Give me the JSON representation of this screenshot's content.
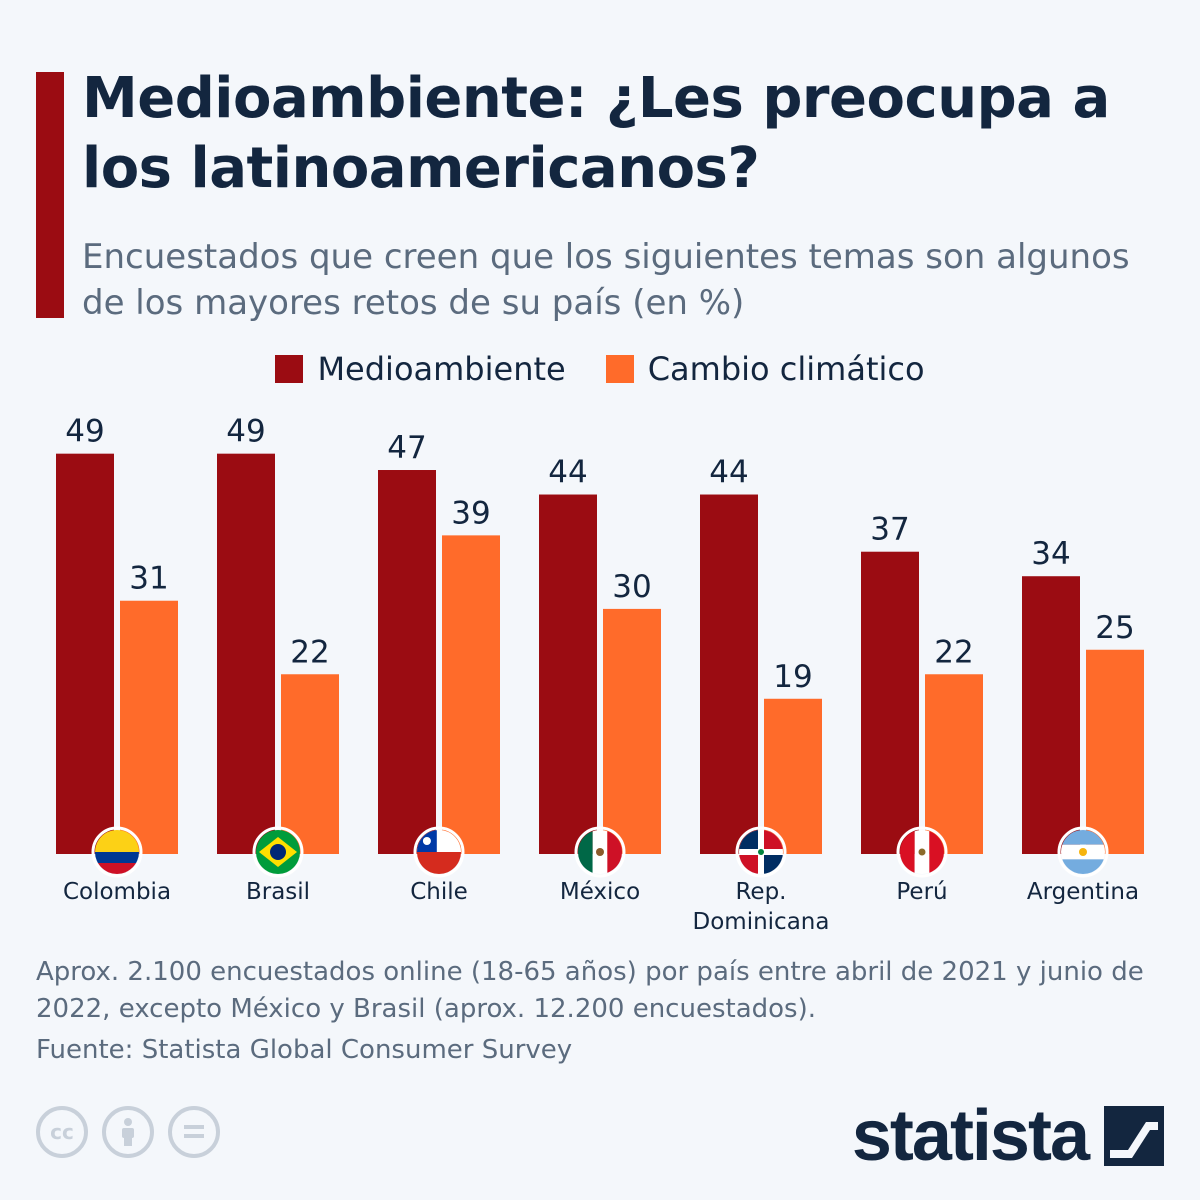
{
  "colors": {
    "accent": "#9b0c12",
    "series_1": "#9b0c12",
    "series_2": "#ff6b2a",
    "title": "#13263f",
    "muted": "#5b6b7e",
    "axis": "#aab4c0"
  },
  "title": "Medioambiente: ¿Les preocupa a los latinoamericanos?",
  "subtitle": "Encuestados que creen que los siguientes temas son algunos de los mayores retos de su país (en %)",
  "legend": [
    {
      "label": "Medioambiente"
    },
    {
      "label": "Cambio climático"
    }
  ],
  "chart_data": {
    "type": "bar",
    "categories": [
      "Colombia",
      "Brasil",
      "Chile",
      "México",
      "Rep. Dominicana",
      "Perú",
      "Argentina"
    ],
    "category_label_lines": [
      [
        "Colombia"
      ],
      [
        "Brasil"
      ],
      [
        "Chile"
      ],
      [
        "México"
      ],
      [
        "Rep.",
        "Dominicana"
      ],
      [
        "Perú"
      ],
      [
        "Argentina"
      ]
    ],
    "flag_icons": [
      "colombia-flag-icon",
      "brazil-flag-icon",
      "chile-flag-icon",
      "mexico-flag-icon",
      "dominican-republic-flag-icon",
      "peru-flag-icon",
      "argentina-flag-icon"
    ],
    "series": [
      {
        "name": "Medioambiente",
        "values": [
          49,
          49,
          47,
          44,
          44,
          37,
          34
        ]
      },
      {
        "name": "Cambio climático",
        "values": [
          31,
          22,
          39,
          30,
          19,
          22,
          25
        ]
      }
    ],
    "title": "Medioambiente: ¿Les preocupa a los latinoamericanos?",
    "xlabel": "",
    "ylabel": "",
    "ylim": [
      0,
      50
    ],
    "grid": false,
    "legend_position": "top-center",
    "data_labels": true
  },
  "footnote": "Aprox. 2.100 encuestados online (18-65 años) por país entre abril de 2021 y junio de 2022, excepto México y Brasil (aprox. 12.200 encuestados).",
  "source": "Fuente: Statista Global Consumer Survey",
  "license_icons": [
    "creative-commons-icon",
    "attribution-icon",
    "no-derivatives-icon"
  ],
  "brand": "statista"
}
